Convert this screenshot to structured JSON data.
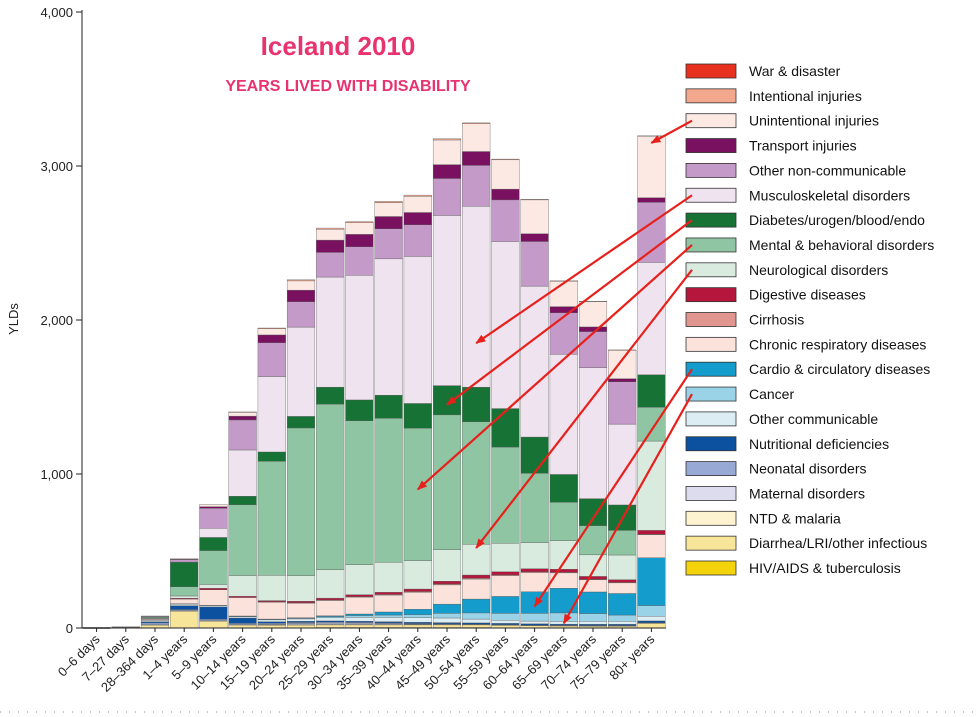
{
  "chart_data": {
    "type": "bar",
    "stacked": true,
    "title": "Iceland 2010",
    "subtitle": "YEARS LIVED WITH DISABILITY",
    "ylabel": "YLDs",
    "xlabel": "",
    "ylim": [
      0,
      4000
    ],
    "yticks": [
      0,
      1000,
      2000,
      3000,
      4000
    ],
    "ytick_labels": [
      "0",
      "1,000",
      "2,000",
      "3,000",
      "4,000"
    ],
    "legend_position": "right",
    "categories": [
      "0–6 days",
      "7–27 days",
      "28–364 days",
      "1–4 years",
      "5–9 years",
      "10–14 years",
      "15–19 years",
      "20–24 years",
      "25–29 years",
      "30–34 years",
      "35–39 years",
      "40–44 years",
      "45–49 years",
      "50–54 years",
      "55–59 years",
      "60–64 years",
      "65–69 years",
      "70–74 years",
      "75–79 years",
      "80+ years"
    ],
    "series": [
      {
        "name": "HIV/AIDS & tuberculosis",
        "color": "#f4d20c",
        "values": [
          0,
          0,
          0,
          0,
          0,
          0,
          1,
          2,
          3,
          3,
          3,
          3,
          3,
          3,
          2,
          2,
          2,
          1,
          1,
          1
        ]
      },
      {
        "name": "Diarrhea/LRI/other infectious",
        "color": "#f7e59a",
        "values": [
          0,
          2,
          20,
          110,
          45,
          20,
          18,
          18,
          18,
          18,
          18,
          18,
          18,
          18,
          16,
          14,
          12,
          12,
          12,
          30
        ]
      },
      {
        "name": "NTD & malaria",
        "color": "#fdf3d0",
        "values": [
          0,
          0,
          1,
          2,
          2,
          2,
          2,
          2,
          2,
          2,
          2,
          2,
          2,
          2,
          2,
          2,
          2,
          2,
          2,
          2
        ]
      },
      {
        "name": "Maternal disorders",
        "color": "#dcdcee",
        "values": [
          0,
          0,
          0,
          0,
          0,
          0,
          2,
          6,
          8,
          7,
          5,
          2,
          1,
          0,
          0,
          0,
          0,
          0,
          0,
          0
        ]
      },
      {
        "name": "Neonatal disorders",
        "color": "#99a9d6",
        "values": [
          0,
          3,
          12,
          8,
          10,
          8,
          8,
          8,
          7,
          6,
          5,
          4,
          3,
          2,
          2,
          1,
          1,
          1,
          1,
          1
        ]
      },
      {
        "name": "Nutritional deficiencies",
        "color": "#0c50a0",
        "values": [
          0,
          0,
          8,
          25,
          80,
          35,
          10,
          8,
          8,
          8,
          8,
          8,
          8,
          8,
          8,
          8,
          8,
          8,
          8,
          12
        ]
      },
      {
        "name": "Other communicable",
        "color": "#dcedf3",
        "values": [
          0,
          2,
          8,
          12,
          10,
          10,
          12,
          15,
          20,
          25,
          28,
          30,
          30,
          25,
          20,
          18,
          18,
          20,
          20,
          30
        ]
      },
      {
        "name": "Cancer",
        "color": "#9ad3e8",
        "values": [
          0,
          0,
          0,
          1,
          1,
          2,
          3,
          5,
          8,
          12,
          15,
          20,
          30,
          40,
          45,
          50,
          55,
          50,
          40,
          70
        ]
      },
      {
        "name": "Cardio & circulatory diseases",
        "color": "#139ccc",
        "values": [
          0,
          0,
          0,
          0,
          0,
          1,
          2,
          3,
          5,
          10,
          20,
          35,
          60,
          90,
          110,
          140,
          160,
          140,
          140,
          310
        ]
      },
      {
        "name": "Chronic respiratory diseases",
        "color": "#fbe2db",
        "values": [
          0,
          1,
          8,
          30,
          100,
          120,
          110,
          95,
          100,
          110,
          110,
          110,
          125,
          130,
          135,
          125,
          100,
          80,
          70,
          150
        ]
      },
      {
        "name": "Cirrhosis",
        "color": "#e0958e",
        "values": [
          0,
          0,
          0,
          0,
          0,
          0,
          2,
          2,
          3,
          3,
          4,
          5,
          6,
          6,
          5,
          5,
          4,
          3,
          2,
          3
        ]
      },
      {
        "name": "Digestive diseases",
        "color": "#b4173b",
        "values": [
          0,
          0,
          2,
          5,
          10,
          8,
          8,
          10,
          12,
          12,
          14,
          16,
          18,
          20,
          20,
          20,
          20,
          18,
          18,
          25
        ]
      },
      {
        "name": "Neurological disorders",
        "color": "#d9eadf",
        "values": [
          0,
          0,
          5,
          15,
          25,
          135,
          165,
          165,
          185,
          195,
          195,
          185,
          205,
          200,
          185,
          170,
          185,
          140,
          160,
          580
        ]
      },
      {
        "name": "Mental & behavioral disorders",
        "color": "#8fc5a2",
        "values": [
          0,
          0,
          5,
          60,
          220,
          460,
          740,
          960,
          1075,
          935,
          935,
          860,
          875,
          795,
          625,
          450,
          250,
          190,
          160,
          220
        ]
      },
      {
        "name": "Diabetes/urogen/blood/endo",
        "color": "#167335",
        "values": [
          0,
          0,
          5,
          160,
          85,
          55,
          60,
          75,
          110,
          135,
          150,
          160,
          190,
          225,
          250,
          235,
          180,
          175,
          165,
          210
        ]
      },
      {
        "name": "Musculoskeletal disorders",
        "color": "#efe3ef",
        "values": [
          0,
          0,
          0,
          0,
          60,
          300,
          490,
          580,
          715,
          810,
          885,
          955,
          1105,
          1175,
          1085,
          980,
          780,
          850,
          525,
          730
        ]
      },
      {
        "name": "Other non-communicable",
        "color": "#c39ac8",
        "values": [
          0,
          0,
          4,
          15,
          130,
          195,
          220,
          165,
          160,
          185,
          195,
          205,
          240,
          265,
          270,
          290,
          270,
          235,
          275,
          390
        ]
      },
      {
        "name": "Transport injuries",
        "color": "#7a1060",
        "values": [
          0,
          0,
          0,
          3,
          10,
          25,
          50,
          75,
          80,
          80,
          80,
          80,
          90,
          90,
          70,
          50,
          40,
          30,
          20,
          30
        ]
      },
      {
        "name": "Unintentional injuries",
        "color": "#fde9e4",
        "values": [
          0,
          0,
          0,
          5,
          15,
          25,
          40,
          60,
          70,
          75,
          90,
          105,
          160,
          180,
          190,
          220,
          165,
          165,
          185,
          400
        ]
      },
      {
        "name": "Intentional injuries",
        "color": "#f3a88e",
        "values": [
          0,
          0,
          0,
          0,
          0,
          2,
          5,
          7,
          8,
          8,
          8,
          8,
          8,
          6,
          5,
          4,
          3,
          2,
          2,
          2
        ]
      },
      {
        "name": "War & disaster",
        "color": "#e8301e",
        "values": [
          0,
          0,
          0,
          0,
          0,
          0,
          0,
          0,
          0,
          0,
          0,
          0,
          0,
          0,
          0,
          0,
          0,
          0,
          0,
          0
        ]
      }
    ],
    "annotations": {
      "arrows": [
        {
          "from_legend": "Unintentional injuries",
          "to_category": "80+ years",
          "at_value": 3150
        },
        {
          "from_legend": "Musculoskeletal disorders",
          "to_category": "50–54 years",
          "at_value": 1850
        },
        {
          "from_legend": "Diabetes/urogen/blood/endo",
          "to_category": "45–49 years",
          "at_value": 1450
        },
        {
          "from_legend": "Mental & behavioral disorders",
          "to_category": "40–44 years",
          "at_value": 900
        },
        {
          "from_legend": "Neurological disorders",
          "to_category": "50–54 years",
          "at_value": 520
        },
        {
          "from_legend": "Cardio & circulatory diseases",
          "to_category": "60–64 years",
          "at_value": 140
        },
        {
          "from_legend": "Cancer",
          "to_category": "65–69 years",
          "at_value": 30
        }
      ]
    }
  }
}
